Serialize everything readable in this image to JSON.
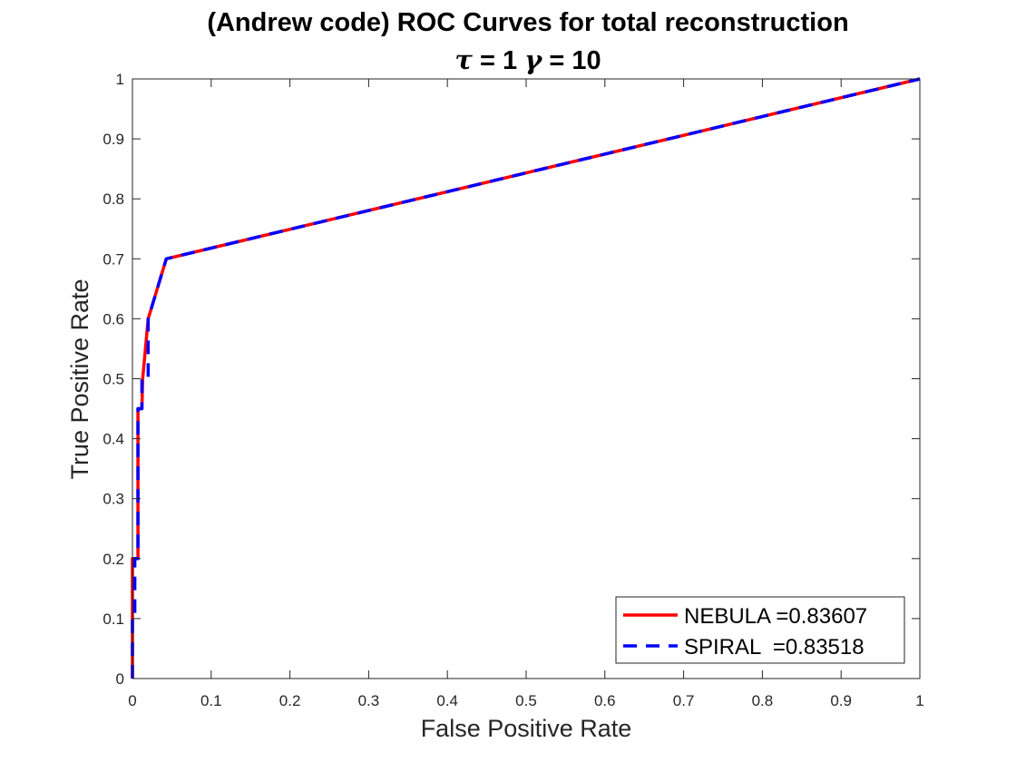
{
  "chart_data": {
    "type": "line",
    "title": "(Andrew code) ROC Curves for total reconstruction",
    "subtitle": {
      "tau_symbol": "τ",
      "tau_text": " = 1 ",
      "gamma_symbol": "γ",
      "gamma_text": " = 10"
    },
    "xlabel": "False Positive Rate",
    "ylabel": "True Positive Rate",
    "xlim": [
      0,
      1
    ],
    "ylim": [
      0,
      1
    ],
    "xticks": [
      0,
      0.1,
      0.2,
      0.3,
      0.4,
      0.5,
      0.6,
      0.7,
      0.8,
      0.9,
      1
    ],
    "yticks": [
      0,
      0.1,
      0.2,
      0.3,
      0.4,
      0.5,
      0.6,
      0.7,
      0.8,
      0.9,
      1
    ],
    "xtick_labels": [
      "0",
      "0.1",
      "0.2",
      "0.3",
      "0.4",
      "0.5",
      "0.6",
      "0.7",
      "0.8",
      "0.9",
      "1"
    ],
    "ytick_labels": [
      "0",
      "0.1",
      "0.2",
      "0.3",
      "0.4",
      "0.5",
      "0.6",
      "0.7",
      "0.8",
      "0.9",
      "1"
    ],
    "grid": false,
    "legend_position": "bottom-right",
    "series": [
      {
        "name": "NEBULA =0.83607",
        "color": "#ff0000",
        "style": "solid",
        "x": [
          0,
          0,
          0.004,
          0.004,
          0.007,
          0.007,
          0.012,
          0.013,
          0.02,
          0.043,
          1
        ],
        "y": [
          0,
          0.2,
          0.2,
          0.2,
          0.2,
          0.45,
          0.45,
          0.5,
          0.6,
          0.7,
          1
        ]
      },
      {
        "name": "SPIRAL  =0.83518",
        "color": "#0000ff",
        "style": "dashed",
        "x": [
          0,
          0,
          0.003,
          0.003,
          0.007,
          0.007,
          0.012,
          0.012,
          0.02,
          0.02,
          0.043,
          1
        ],
        "y": [
          0,
          0.1,
          0.1,
          0.2,
          0.2,
          0.45,
          0.45,
          0.5,
          0.5,
          0.6,
          0.7,
          1
        ]
      }
    ]
  }
}
